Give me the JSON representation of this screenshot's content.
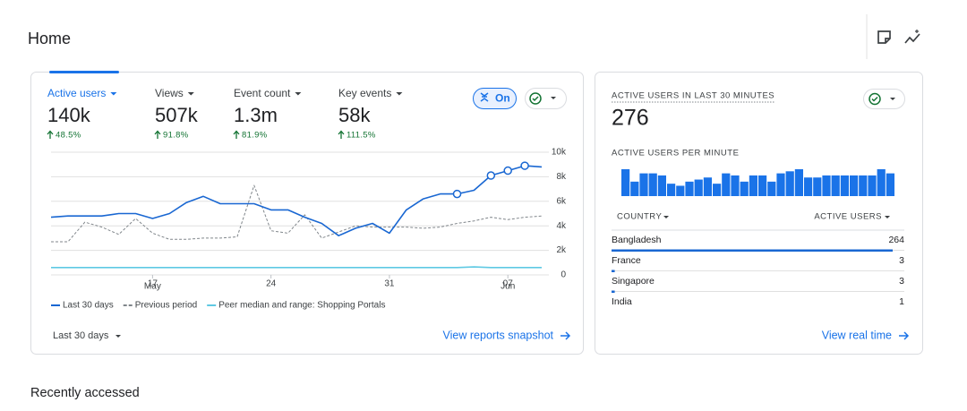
{
  "header": {
    "title": "Home"
  },
  "overview": {
    "metrics": [
      {
        "label": "Active users",
        "value": "140k",
        "change": "48.5%"
      },
      {
        "label": "Views",
        "value": "507k",
        "change": "91.8%"
      },
      {
        "label": "Event count",
        "value": "1.3m",
        "change": "81.9%"
      },
      {
        "label": "Key events",
        "value": "58k",
        "change": "111.5%"
      }
    ],
    "toggle_label": "On",
    "chart": {
      "type": "line",
      "categories": [
        null,
        null,
        null,
        null,
        null,
        null,
        "17",
        null,
        null,
        null,
        null,
        null,
        null,
        "24",
        null,
        null,
        null,
        null,
        null,
        null,
        "31",
        null,
        null,
        null,
        null,
        null,
        null,
        "07",
        null,
        null
      ],
      "x_month_labels": [
        null,
        null,
        null,
        null,
        null,
        null,
        "May",
        null,
        null,
        null,
        null,
        null,
        null,
        null,
        null,
        null,
        null,
        null,
        null,
        null,
        null,
        null,
        null,
        null,
        null,
        null,
        null,
        "Jun",
        null,
        null
      ],
      "ylim": [
        0,
        10000
      ],
      "yticks": [
        0,
        {
          "value": 2000,
          "label": "2k"
        },
        {
          "value": 4000,
          "label": "4k"
        },
        {
          "value": 6000,
          "label": "6k"
        },
        {
          "value": 8000,
          "label": "8k"
        },
        {
          "value": 10000,
          "label": "10k"
        }
      ],
      "grid": true,
      "series": [
        {
          "name": "Last 30 days",
          "color": "#1967d2",
          "style": "solid",
          "values": [
            4700,
            4800,
            4800,
            4800,
            5000,
            5000,
            4600,
            5000,
            5900,
            6400,
            5800,
            5800,
            5800,
            5300,
            5300,
            4700,
            4200,
            3200,
            3800,
            4200,
            3400,
            5300,
            6200,
            6600,
            6600,
            6900,
            8100,
            8500,
            8900,
            8800
          ],
          "anomaly_points": [
            24,
            26,
            27,
            28
          ]
        },
        {
          "name": "Previous period",
          "color": "#80868b",
          "style": "dashed",
          "values": [
            2700,
            2700,
            4300,
            3900,
            3300,
            4600,
            3400,
            2900,
            2900,
            3000,
            3000,
            3100,
            7300,
            3600,
            3400,
            4900,
            3000,
            3500,
            4000,
            3900,
            3900,
            3900,
            3800,
            3900,
            4200,
            4400,
            4700,
            4500,
            4700,
            4800
          ]
        },
        {
          "name": "Peer median and range: Shopping Portals",
          "color": "#5fc9e3",
          "style": "solid",
          "values": [
            600,
            600,
            600,
            600,
            600,
            600,
            600,
            600,
            600,
            600,
            600,
            600,
            600,
            600,
            600,
            600,
            600,
            600,
            600,
            600,
            600,
            600,
            600,
            600,
            600,
            650,
            600,
            600,
            600,
            600
          ]
        }
      ]
    },
    "date_range": "Last 30 days",
    "link": "View reports snapshot"
  },
  "realtime": {
    "title": "ACTIVE USERS IN LAST 30 MINUTES",
    "value": "276",
    "per_minute_title": "ACTIVE USERS PER MINUTE",
    "per_minute": [
      13,
      7,
      11,
      11,
      10,
      6,
      5,
      7,
      8,
      9,
      6,
      11,
      10,
      7,
      10,
      10,
      7,
      11,
      12,
      13,
      9,
      9,
      10,
      10,
      10,
      10,
      10,
      10,
      13,
      11
    ],
    "table": {
      "columns": [
        "COUNTRY",
        "ACTIVE USERS"
      ],
      "rows": [
        [
          "Bangladesh",
          264
        ],
        [
          "France",
          3
        ],
        [
          "Singapore",
          3
        ],
        [
          "India",
          1
        ]
      ]
    },
    "link": "View real time"
  },
  "recent": {
    "title": "Recently accessed"
  }
}
